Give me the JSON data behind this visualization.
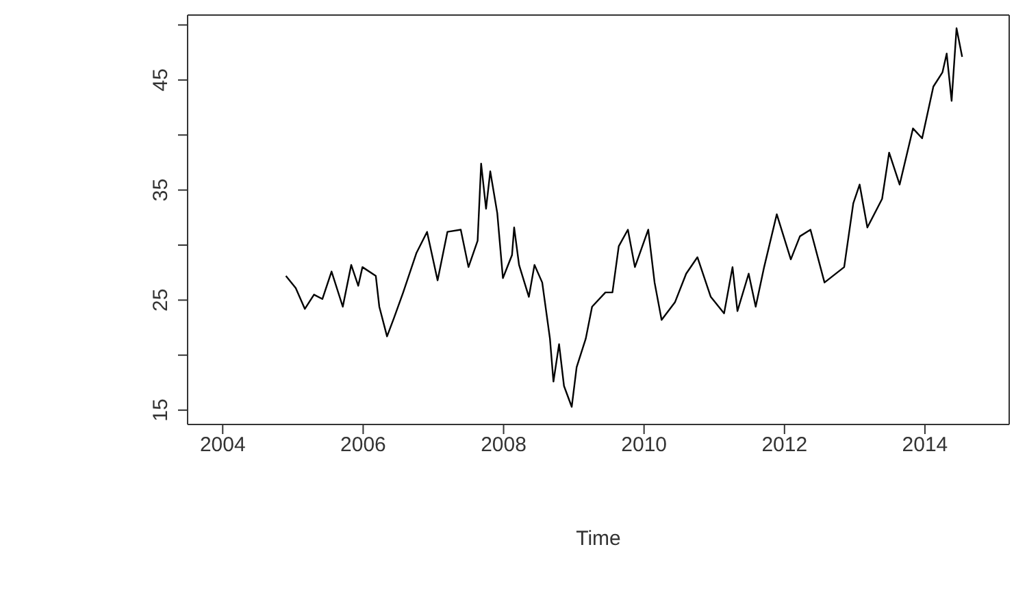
{
  "chart_data": {
    "type": "line",
    "xlabel": "Time",
    "xlim": [
      2003.5,
      2015.2
    ],
    "xticks": [
      2004,
      2006,
      2008,
      2010,
      2012,
      2014
    ],
    "ylim": [
      13.7,
      50.9
    ],
    "yticks": [
      15,
      {
        "value": 20,
        "label": null
      },
      25,
      {
        "value": 30,
        "label": null
      },
      35,
      {
        "value": 40,
        "label": null
      },
      45,
      {
        "value": 50,
        "label": null
      }
    ],
    "marker": "none",
    "line_style": "solid",
    "x": [
      2004.9,
      2005.04,
      2005.17,
      2005.3,
      2005.42,
      2005.55,
      2005.71,
      2005.83,
      2005.93,
      2005.99,
      2006.18,
      2006.23,
      2006.34,
      2006.44,
      2006.57,
      2006.76,
      2006.91,
      2007.06,
      2007.2,
      2007.39,
      2007.5,
      2007.63,
      2007.68,
      2007.75,
      2007.81,
      2007.91,
      2007.99,
      2008.12,
      2008.15,
      2008.22,
      2008.36,
      2008.44,
      2008.55,
      2008.66,
      2008.71,
      2008.79,
      2008.86,
      2008.97,
      2009.04,
      2009.17,
      2009.26,
      2009.45,
      2009.55,
      2009.64,
      2009.77,
      2009.87,
      2010.06,
      2010.15,
      2010.25,
      2010.44,
      2010.6,
      2010.76,
      2010.95,
      2011.14,
      2011.26,
      2011.33,
      2011.49,
      2011.59,
      2011.71,
      2011.89,
      2012.09,
      2012.22,
      2012.37,
      2012.57,
      2012.85,
      2012.98,
      2013.07,
      2013.18,
      2013.39,
      2013.49,
      2013.64,
      2013.83,
      2013.96,
      2014.12,
      2014.25,
      2014.31,
      2014.38,
      2014.45,
      2014.53
    ],
    "series": [
      {
        "color": "#000000",
        "values": [
          27.2,
          26.1,
          24.2,
          25.5,
          25.1,
          27.6,
          24.4,
          28.2,
          26.3,
          28.0,
          27.2,
          24.4,
          21.7,
          23.4,
          25.7,
          29.3,
          31.2,
          26.8,
          31.2,
          31.4,
          28.0,
          30.4,
          37.4,
          33.3,
          36.7,
          32.9,
          27.0,
          29.1,
          31.6,
          28.2,
          25.3,
          28.2,
          26.6,
          21.5,
          17.6,
          21.0,
          17.2,
          15.3,
          18.9,
          21.5,
          24.4,
          25.7,
          25.7,
          29.9,
          31.4,
          28.0,
          31.4,
          26.6,
          23.2,
          24.8,
          27.4,
          28.9,
          25.3,
          23.8,
          28.0,
          24.0,
          27.4,
          24.4,
          28.0,
          32.8,
          28.7,
          30.8,
          31.4,
          26.6,
          28.0,
          33.8,
          35.5,
          31.6,
          34.2,
          38.4,
          35.5,
          40.6,
          39.7,
          44.4,
          45.7,
          47.4,
          43.1,
          49.7,
          47.1
        ]
      }
    ]
  }
}
